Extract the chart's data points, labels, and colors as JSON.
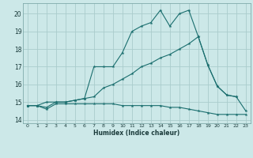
{
  "bg_color": "#cce8e8",
  "grid_color": "#aacccc",
  "line_color": "#1a6e6e",
  "xlim": [
    -0.5,
    23.5
  ],
  "ylim": [
    13.8,
    20.6
  ],
  "xticks": [
    0,
    1,
    2,
    3,
    4,
    5,
    6,
    7,
    8,
    9,
    10,
    11,
    12,
    13,
    14,
    15,
    16,
    17,
    18,
    19,
    20,
    21,
    22,
    23
  ],
  "yticks": [
    14,
    15,
    16,
    17,
    18,
    19,
    20
  ],
  "xlabel": "Humidex (Indice chaleur)",
  "line1_x": [
    0,
    1,
    2,
    3,
    4,
    5,
    6,
    7,
    8,
    9,
    10,
    11,
    12,
    13,
    14,
    15,
    16,
    17,
    18,
    19,
    20,
    21,
    22,
    23
  ],
  "line1_y": [
    14.8,
    14.8,
    14.6,
    14.9,
    14.9,
    14.9,
    14.9,
    14.9,
    14.9,
    14.9,
    14.8,
    14.8,
    14.8,
    14.8,
    14.8,
    14.7,
    14.7,
    14.6,
    14.5,
    14.4,
    14.3,
    14.3,
    14.3,
    14.3
  ],
  "line2_x": [
    0,
    1,
    2,
    3,
    4,
    5,
    6,
    7,
    8,
    9,
    10,
    11,
    12,
    13,
    14,
    15,
    16,
    17,
    18,
    19,
    20,
    21,
    22,
    23
  ],
  "line2_y": [
    14.8,
    14.8,
    15.0,
    15.0,
    15.0,
    15.1,
    15.2,
    15.3,
    15.8,
    16.0,
    16.3,
    16.6,
    17.0,
    17.2,
    17.5,
    17.7,
    18.0,
    18.3,
    18.7,
    17.1,
    15.9,
    15.4,
    15.3,
    14.5
  ],
  "line3_x": [
    0,
    1,
    2,
    3,
    4,
    5,
    6,
    7,
    8,
    9,
    10,
    11,
    12,
    13,
    14,
    15,
    16,
    17,
    18,
    19,
    20,
    21,
    22
  ],
  "line3_y": [
    14.8,
    14.8,
    14.7,
    15.0,
    15.0,
    15.1,
    15.2,
    17.0,
    17.0,
    17.0,
    17.8,
    19.0,
    19.3,
    19.5,
    20.2,
    19.3,
    20.0,
    20.2,
    18.7,
    17.1,
    15.9,
    15.4,
    15.3
  ]
}
